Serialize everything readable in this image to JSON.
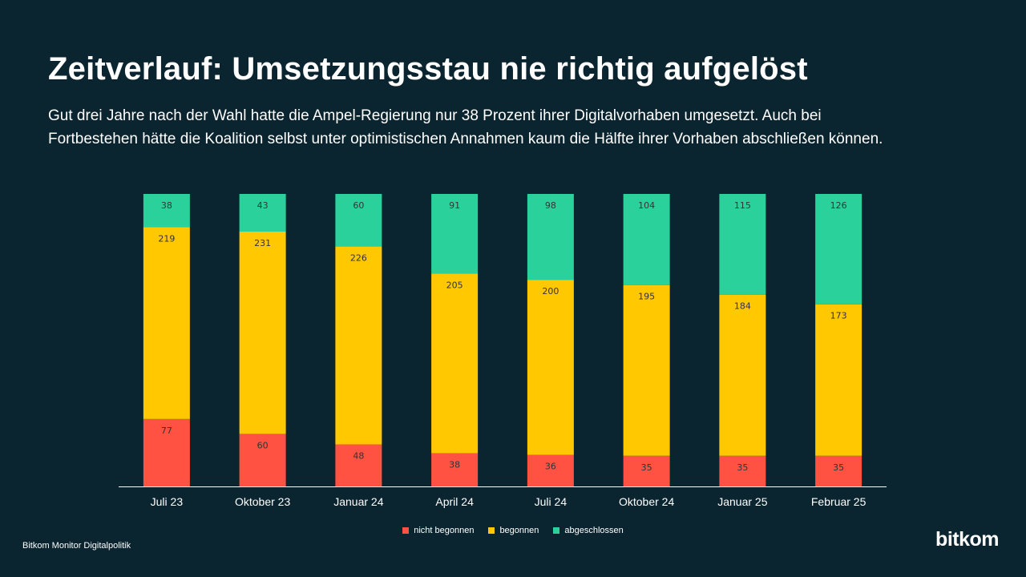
{
  "title": "Zeitverlauf: Umsetzungsstau nie richtig aufgelöst",
  "subtitle": "Gut drei Jahre nach der Wahl hatte die Ampel-Regierung nur 38 Prozent ihrer Digitalvorhaben umgesetzt. Auch bei Fortbestehen hätte die Koalition selbst unter optimistischen Annahmen kaum die Hälfte ihrer Vorhaben abschließen können.",
  "source": "Bitkom Monitor Digitalpolitik",
  "logo": "bitkom",
  "colors": {
    "background": "#0b2530",
    "nicht_begonnen": "#ff5243",
    "begonnen": "#ffc800",
    "abgeschlossen": "#2bd19b",
    "axis": "#ffffff"
  },
  "legend": [
    {
      "label": "nicht begonnen",
      "color": "#ff5243"
    },
    {
      "label": "begonnen",
      "color": "#ffc800"
    },
    {
      "label": "abgeschlossen",
      "color": "#2bd19b"
    }
  ],
  "chart_data": {
    "type": "bar",
    "stacked": true,
    "categories": [
      "Juli 23",
      "Oktober 23",
      "Januar 24",
      "April 24",
      "Juli 24",
      "Oktober 24",
      "Januar 25",
      "Februar 25"
    ],
    "series": [
      {
        "name": "nicht begonnen",
        "color": "#ff5243",
        "values": [
          77,
          60,
          48,
          38,
          36,
          35,
          35,
          35
        ]
      },
      {
        "name": "begonnen",
        "color": "#ffc800",
        "values": [
          219,
          231,
          226,
          205,
          200,
          195,
          184,
          173
        ]
      },
      {
        "name": "abgeschlossen",
        "color": "#2bd19b",
        "values": [
          38,
          43,
          60,
          91,
          98,
          104,
          115,
          126
        ]
      }
    ],
    "xlabel": "",
    "ylabel": "",
    "ylim": [
      0,
      334
    ],
    "grid": false,
    "legend_position": "bottom-center",
    "data_labels": true
  }
}
